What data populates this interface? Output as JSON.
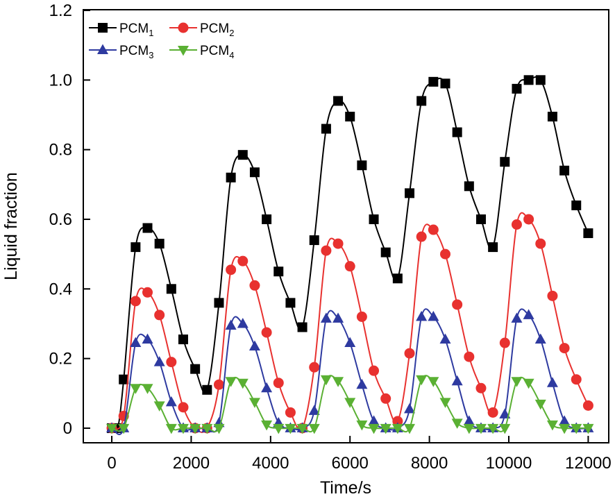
{
  "chart_data": {
    "type": "line",
    "xlabel": "Time/s",
    "ylabel": "Liquid fraction",
    "xlim": [
      -700,
      12500
    ],
    "ylim": [
      -0.04,
      1.2
    ],
    "xticks": [
      0,
      2000,
      4000,
      6000,
      8000,
      10000,
      12000
    ],
    "xtick_labels": [
      "0",
      "2000",
      "4000",
      "6000",
      "8000",
      "10000",
      "12000"
    ],
    "yticks": [
      0,
      0.2,
      0.4,
      0.6,
      0.8,
      1.0,
      1.2
    ],
    "ytick_labels": [
      "0",
      "0.2",
      "0.4",
      "0.6",
      "0.8",
      "1.0",
      "1.2"
    ],
    "legend_position": "top-left",
    "series": [
      {
        "name": "PCM1",
        "label_main": "PCM",
        "label_sub": "1",
        "color": "#000000",
        "marker": "square",
        "points": [
          [
            0,
            0
          ],
          [
            150,
            0
          ],
          [
            300,
            0.14
          ],
          [
            600,
            0.52
          ],
          [
            900,
            0.575
          ],
          [
            1200,
            0.53
          ],
          [
            1500,
            0.4
          ],
          [
            1800,
            0.255
          ],
          [
            2100,
            0.17
          ],
          [
            2400,
            0.11
          ],
          [
            2700,
            0.36
          ],
          [
            3000,
            0.72
          ],
          [
            3300,
            0.785
          ],
          [
            3600,
            0.735
          ],
          [
            3900,
            0.6
          ],
          [
            4200,
            0.45
          ],
          [
            4500,
            0.36
          ],
          [
            4800,
            0.29
          ],
          [
            5100,
            0.54
          ],
          [
            5400,
            0.86
          ],
          [
            5700,
            0.94
          ],
          [
            6000,
            0.895
          ],
          [
            6300,
            0.755
          ],
          [
            6600,
            0.6
          ],
          [
            6900,
            0.505
          ],
          [
            7200,
            0.43
          ],
          [
            7500,
            0.675
          ],
          [
            7800,
            0.94
          ],
          [
            8100,
            0.995
          ],
          [
            8400,
            0.99
          ],
          [
            8700,
            0.85
          ],
          [
            9000,
            0.695
          ],
          [
            9300,
            0.6
          ],
          [
            9600,
            0.52
          ],
          [
            9900,
            0.765
          ],
          [
            10200,
            0.975
          ],
          [
            10500,
            1.0
          ],
          [
            10800,
            1.0
          ],
          [
            11100,
            0.895
          ],
          [
            11400,
            0.74
          ],
          [
            11700,
            0.64
          ],
          [
            12000,
            0.56
          ]
        ]
      },
      {
        "name": "PCM2",
        "label_main": "PCM",
        "label_sub": "2",
        "color": "#e8312f",
        "marker": "circle",
        "points": [
          [
            0,
            0
          ],
          [
            300,
            0.035
          ],
          [
            600,
            0.365
          ],
          [
            900,
            0.39
          ],
          [
            1200,
            0.325
          ],
          [
            1500,
            0.19
          ],
          [
            1800,
            0.06
          ],
          [
            2100,
            0
          ],
          [
            2400,
            0
          ],
          [
            2700,
            0.125
          ],
          [
            3000,
            0.455
          ],
          [
            3300,
            0.48
          ],
          [
            3600,
            0.41
          ],
          [
            3900,
            0.275
          ],
          [
            4200,
            0.13
          ],
          [
            4500,
            0.045
          ],
          [
            4800,
            0
          ],
          [
            5100,
            0.175
          ],
          [
            5400,
            0.51
          ],
          [
            5700,
            0.53
          ],
          [
            6000,
            0.465
          ],
          [
            6300,
            0.32
          ],
          [
            6600,
            0.165
          ],
          [
            6900,
            0.085
          ],
          [
            7200,
            0.02
          ],
          [
            7500,
            0.215
          ],
          [
            7800,
            0.55
          ],
          [
            8100,
            0.57
          ],
          [
            8400,
            0.5
          ],
          [
            8700,
            0.355
          ],
          [
            9000,
            0.205
          ],
          [
            9300,
            0.115
          ],
          [
            9600,
            0.045
          ],
          [
            9900,
            0.245
          ],
          [
            10200,
            0.585
          ],
          [
            10500,
            0.6
          ],
          [
            10800,
            0.53
          ],
          [
            11100,
            0.38
          ],
          [
            11400,
            0.23
          ],
          [
            11700,
            0.14
          ],
          [
            12000,
            0.065
          ]
        ]
      },
      {
        "name": "PCM3",
        "label_main": "PCM",
        "label_sub": "3",
        "color": "#2e3aa0",
        "marker": "triangle-up",
        "points": [
          [
            0,
            0
          ],
          [
            300,
            0
          ],
          [
            600,
            0.245
          ],
          [
            900,
            0.255
          ],
          [
            1200,
            0.19
          ],
          [
            1500,
            0.075
          ],
          [
            1800,
            0
          ],
          [
            2100,
            0
          ],
          [
            2400,
            0
          ],
          [
            2700,
            0.015
          ],
          [
            3000,
            0.295
          ],
          [
            3300,
            0.3
          ],
          [
            3600,
            0.235
          ],
          [
            3900,
            0.115
          ],
          [
            4200,
            0.015
          ],
          [
            4500,
            0
          ],
          [
            4800,
            0
          ],
          [
            5100,
            0.05
          ],
          [
            5400,
            0.315
          ],
          [
            5700,
            0.315
          ],
          [
            6000,
            0.245
          ],
          [
            6300,
            0.125
          ],
          [
            6600,
            0.02
          ],
          [
            6900,
            0
          ],
          [
            7200,
            0
          ],
          [
            7500,
            0.055
          ],
          [
            7800,
            0.32
          ],
          [
            8100,
            0.32
          ],
          [
            8400,
            0.255
          ],
          [
            8700,
            0.135
          ],
          [
            9000,
            0.02
          ],
          [
            9300,
            0
          ],
          [
            9600,
            0
          ],
          [
            9900,
            0.04
          ],
          [
            10200,
            0.315
          ],
          [
            10500,
            0.325
          ],
          [
            10800,
            0.255
          ],
          [
            11100,
            0.13
          ],
          [
            11400,
            0.02
          ],
          [
            11700,
            0
          ],
          [
            12000,
            0
          ]
        ]
      },
      {
        "name": "PCM4",
        "label_main": "PCM",
        "label_sub": "4",
        "color": "#5ab033",
        "marker": "triangle-down",
        "points": [
          [
            0,
            0
          ],
          [
            300,
            0
          ],
          [
            600,
            0.115
          ],
          [
            900,
            0.115
          ],
          [
            1200,
            0.065
          ],
          [
            1500,
            0
          ],
          [
            1800,
            0
          ],
          [
            2100,
            0
          ],
          [
            2400,
            0
          ],
          [
            2700,
            0
          ],
          [
            3000,
            0.135
          ],
          [
            3300,
            0.13
          ],
          [
            3600,
            0.075
          ],
          [
            3900,
            0.01
          ],
          [
            4200,
            0
          ],
          [
            4500,
            0
          ],
          [
            4800,
            0
          ],
          [
            5100,
            0
          ],
          [
            5400,
            0.14
          ],
          [
            5700,
            0.135
          ],
          [
            6000,
            0.075
          ],
          [
            6300,
            0.01
          ],
          [
            6600,
            0
          ],
          [
            6900,
            0
          ],
          [
            7200,
            0
          ],
          [
            7500,
            0
          ],
          [
            7800,
            0.14
          ],
          [
            8100,
            0.135
          ],
          [
            8400,
            0.075
          ],
          [
            8700,
            0.015
          ],
          [
            9000,
            0
          ],
          [
            9300,
            0
          ],
          [
            9600,
            0
          ],
          [
            9900,
            0
          ],
          [
            10200,
            0.135
          ],
          [
            10500,
            0.13
          ],
          [
            10800,
            0.07
          ],
          [
            11100,
            0.01
          ],
          [
            11400,
            0
          ],
          [
            11700,
            0
          ],
          [
            12000,
            0
          ]
        ]
      }
    ]
  }
}
